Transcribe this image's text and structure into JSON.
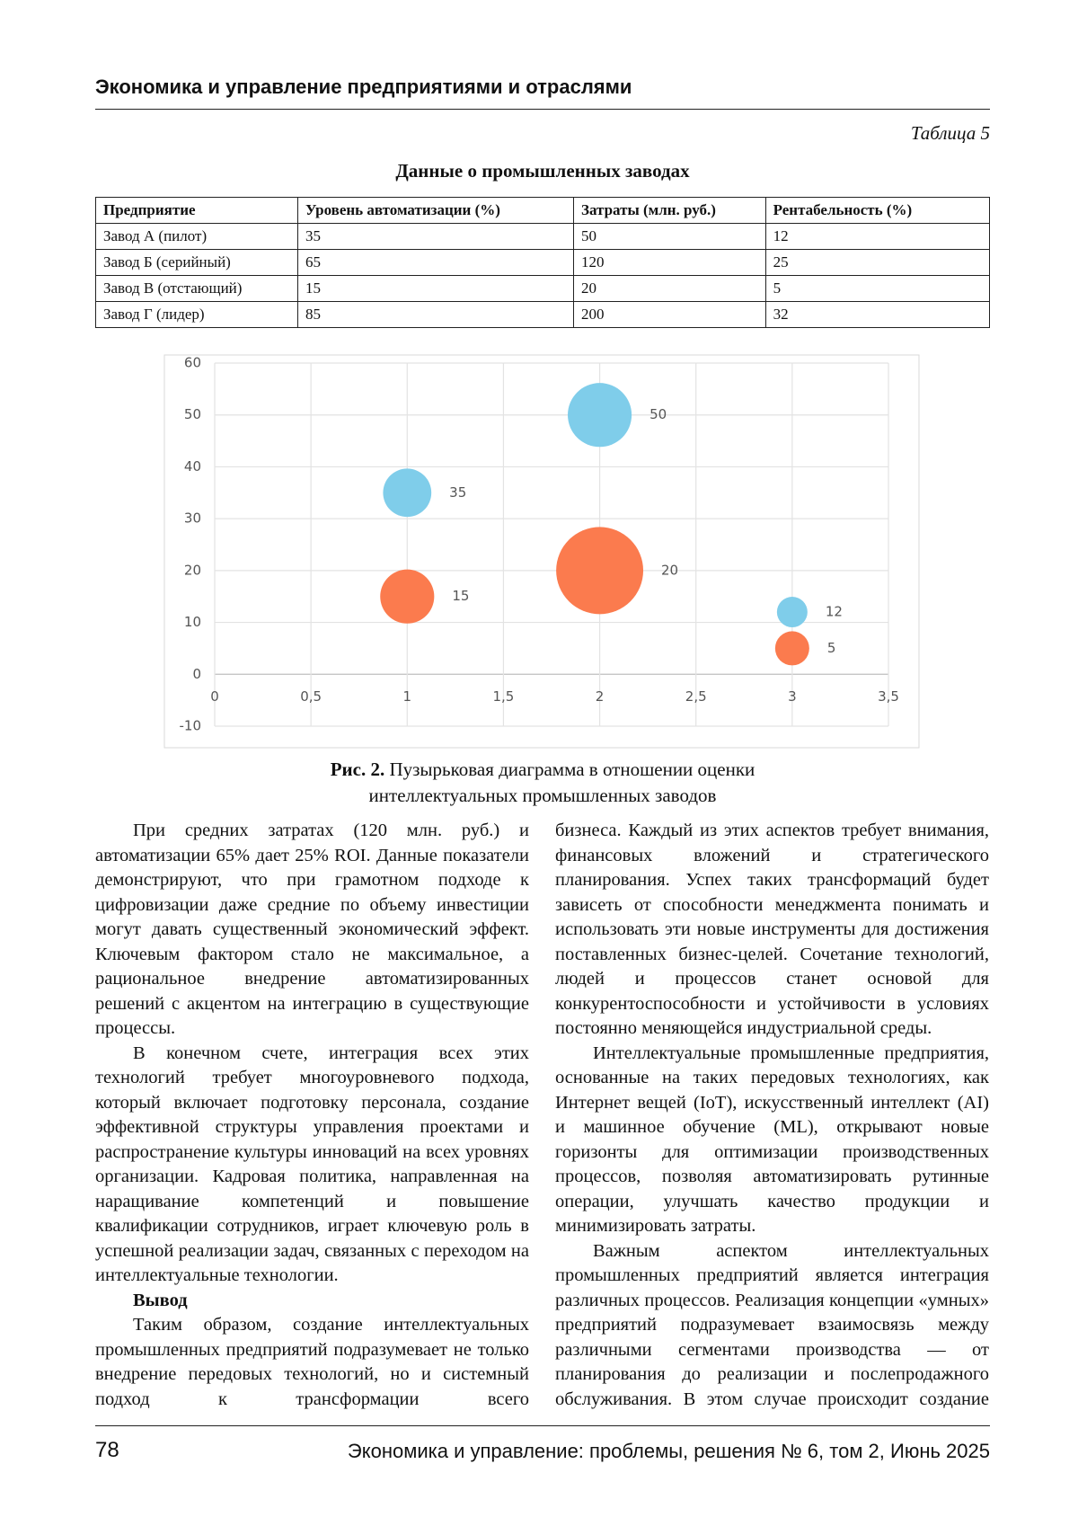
{
  "header": {
    "title": "Экономика и управление предприятиями и отраслями"
  },
  "table": {
    "label": "Таблица 5",
    "title": "Данные о промышленных заводах",
    "columns": [
      "Предприятие",
      "Уровень автоматизации (%)",
      "Затраты (млн. руб.)",
      "Рентабельность (%)"
    ],
    "rows": [
      [
        "Завод А (пилот)",
        35,
        50,
        12
      ],
      [
        "Завод Б (серийный)",
        65,
        120,
        25
      ],
      [
        "Завод В (отстающий)",
        15,
        20,
        5
      ],
      [
        "Завод Г (лидер)",
        85,
        200,
        32
      ]
    ]
  },
  "chart_data": {
    "type": "bubble",
    "series": [
      {
        "color": "#7fcdea",
        "x": [
          1,
          2,
          3
        ],
        "values": [
          35,
          50,
          12
        ],
        "sizes": [
          40,
          70,
          16
        ]
      },
      {
        "color": "#fb7b4e",
        "x": [
          1,
          2,
          3
        ],
        "values": [
          15,
          20,
          5
        ],
        "sizes": [
          50,
          130,
          20
        ]
      }
    ],
    "xlim": [
      0,
      3.5
    ],
    "xticks": [
      0,
      {
        "value": 0.5,
        "label": "0,5"
      },
      1,
      {
        "value": 1.5,
        "label": "1,5"
      },
      2,
      {
        "value": 2.5,
        "label": "2,5"
      },
      3,
      {
        "value": 3.5,
        "label": "3,5"
      }
    ],
    "ylim": [
      -10,
      60
    ],
    "yticks": [
      -10,
      0,
      10,
      20,
      30,
      40,
      50,
      60
    ],
    "grid": true
  },
  "figure": {
    "caption_label": "Рис. 2.",
    "caption_text": "Пузырьковая диаграмма в отношении оценки интеллектуальных промышленных заводов"
  },
  "body": {
    "left": [
      {
        "text": "При средних затратах (120 млн. руб.) и автоматизации 65% дает 25% ROI. Данные показатели демонстрируют, что при грамотном подходе к цифровизации даже средние по объему инвестиции могут давать существенный экономический эффект. Ключевым фактором стало не максимальное, а рациональное внедрение автоматизированных решений с акцентом на интеграцию в существующие процессы."
      },
      {
        "text": "В конечном счете, интеграция всех этих технологий требует многоуровневого подхода, который включает подготовку персонала, создание эффективной структуры управления проектами и распространение культуры инноваций на всех уровнях организации. Кадровая политика, направленная на наращивание компетенций и повышение квалификации сотрудников, играет ключевую роль в успешной реализации задач, связанных с переходом на интеллектуальные технологии."
      },
      {
        "heading": "Вывод"
      },
      {
        "text": "Таким образом, создание интеллектуальных промышленных предприятий подразумевает не только внедрение передовых технологий, но и системный подход к трансформации всего"
      }
    ],
    "right": [
      {
        "text": "бизнеса. Каждый из этих аспектов требует внимания, финансовых вложений и стратегического планирования. Успех таких трансформаций будет зависеть от способности менеджмента понимать и использовать эти новые инструменты для достижения поставленных бизнес-целей. Сочетание технологий, людей и процессов станет основой для конкурентоспособности и устойчивости в условиях постоянно меняющейся индустриальной среды."
      },
      {
        "text": "Интеллектуальные промышленные предприятия, основанные на таких передовых технологиях, как Интернет вещей (IoT), искусственный интеллект (AI) и машинное обучение (ML), открывают новые горизонты для оптимизации производственных процессов, позволяя автоматизировать рутинные операции, улучшать качество продукции и минимизировать затраты."
      },
      {
        "text": "Важным аспектом интеллектуальных промышленных предприятий является интеграция различных процессов. Реализация концепции «умных» предприятий подразумевает взаимосвязь между различными сегментами производства — от планирования до реализации и послепродажного обслуживания. В этом случае происходит создание"
      }
    ]
  },
  "footer": {
    "page": "78",
    "journal": "Экономика и управление: проблемы, решения № 6, том 2, Июнь 2025"
  }
}
